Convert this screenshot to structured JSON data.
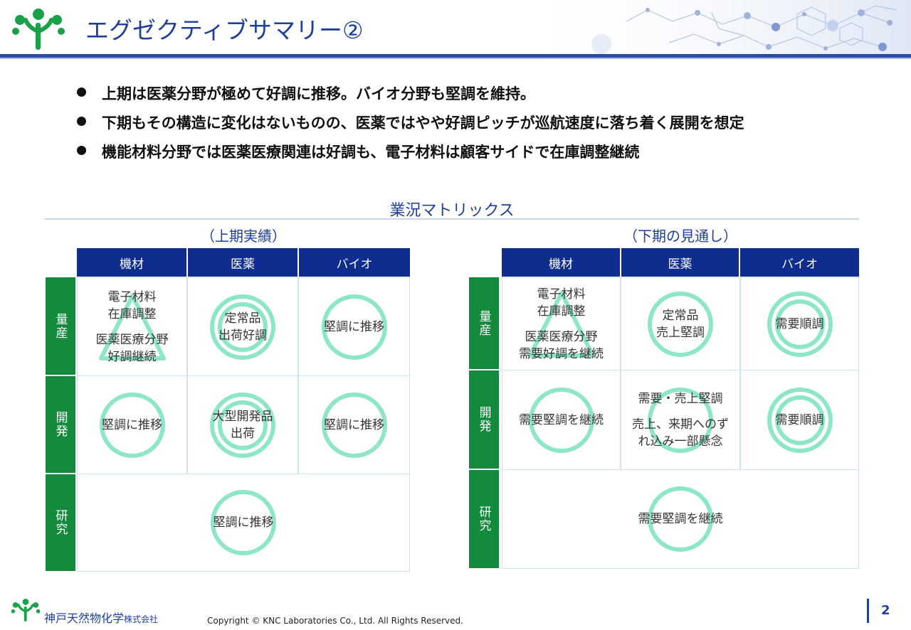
{
  "header": {
    "title": "エグゼクティブサマリー②",
    "logo_icon": "company-tree-logo-icon",
    "background_decor": "molecule-pattern"
  },
  "bullets": [
    "上期は医薬分野が極めて好調に推移。バイオ分野も堅調を維持。",
    "下期もその構造に変化はないものの、医薬ではやや好調ピッチが巡航速度に落ち着く展開を想定",
    "機能材料分野では医薬医療関連は好調も、電子材料は顧客サイドで在庫調整継続"
  ],
  "matrix": {
    "title": "業況マトリックス",
    "left": {
      "title": "（上期実績）",
      "columns": [
        "機材",
        "医薬",
        "バイオ"
      ],
      "rows": [
        "量産",
        "開発",
        "研究"
      ],
      "cells": {
        "r0c0": {
          "lines": [
            "電子材料",
            "在庫調整",
            "",
            "医薬医療分野",
            "好調継続"
          ],
          "mark": "triangle"
        },
        "r0c1": {
          "lines": [
            "定常品",
            "出荷好調"
          ],
          "mark": "double-circle"
        },
        "r0c2": {
          "lines": [
            "堅調に推移"
          ],
          "mark": "circle"
        },
        "r1c0": {
          "lines": [
            "堅調に推移"
          ],
          "mark": "circle"
        },
        "r1c1": {
          "lines": [
            "大型開発品",
            "出荷"
          ],
          "mark": "double-circle"
        },
        "r1c2": {
          "lines": [
            "堅調に推移"
          ],
          "mark": "circle"
        },
        "r2": {
          "lines": [
            "堅調に推移"
          ],
          "mark": "circle"
        }
      }
    },
    "right": {
      "title": "（下期の見通し）",
      "columns": [
        "機材",
        "医薬",
        "バイオ"
      ],
      "rows": [
        "量産",
        "開発",
        "研究"
      ],
      "cells": {
        "r0c0": {
          "lines": [
            "電子材料",
            "在庫調整",
            "",
            "医薬医療分野",
            "需要好調を継続"
          ],
          "mark": "triangle"
        },
        "r0c1": {
          "lines": [
            "定常品",
            "売上堅調"
          ],
          "mark": "circle"
        },
        "r0c2": {
          "lines": [
            "需要順調"
          ],
          "mark": "double-circle"
        },
        "r1c0": {
          "lines": [
            "需要堅調を継続"
          ],
          "mark": "circle"
        },
        "r1c1": {
          "lines": [
            "需要・売上堅調",
            "",
            "売上、来期へのず",
            "れ込み一部懸念"
          ],
          "mark": "circle"
        },
        "r1c2": {
          "lines": [
            "需要順調"
          ],
          "mark": "double-circle"
        },
        "r2": {
          "lines": [
            "需要堅調を継続"
          ],
          "mark": "circle"
        }
      }
    }
  },
  "footer": {
    "company": "神戸天然物化学",
    "company_suffix": "株式会社",
    "copyright": "Copyright © KNC Laboratories Co., Ltd. All Rights Reserved.",
    "page": "2"
  },
  "colors": {
    "brand_blue": "#1f3f9a",
    "header_navy": "#0f2d8f",
    "row_green": "#148a3c",
    "mark_mint": "#8ee6c8"
  }
}
